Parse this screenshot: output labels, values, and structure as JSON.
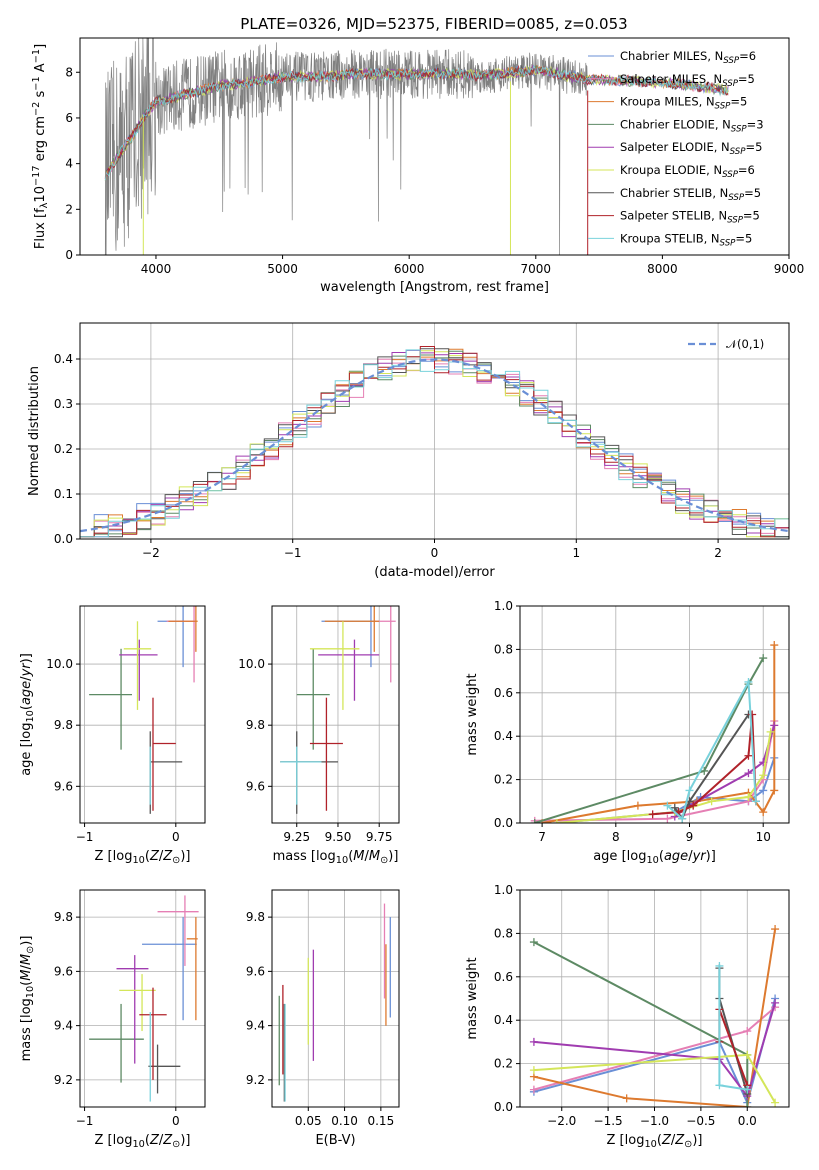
{
  "title": "PLATE=0326, MJD=52375, FIBERID=0085, z=0.053",
  "models": [
    {
      "name": "Chabrier MILES",
      "nssp": "6",
      "color": "#6a8fd6"
    },
    {
      "name": "Salpeter MILES",
      "nssp": "5",
      "color": "#e57fb4"
    },
    {
      "name": "Kroupa MILES",
      "nssp": "5",
      "color": "#dd7a2f"
    },
    {
      "name": "Chabrier ELODIE",
      "nssp": "3",
      "color": "#5d8a64"
    },
    {
      "name": "Salpeter ELODIE",
      "nssp": "5",
      "color": "#a03cb0"
    },
    {
      "name": "Kroupa ELODIE",
      "nssp": "6",
      "color": "#d4e65a"
    },
    {
      "name": "Chabrier STELIB",
      "nssp": "5",
      "color": "#555555"
    },
    {
      "name": "Salpeter STELIB",
      "nssp": "5",
      "color": "#b0222a"
    },
    {
      "name": "Kroupa STELIB",
      "nssp": "5",
      "color": "#79d2dc"
    }
  ],
  "chart_data": [
    {
      "id": "spectrum",
      "type": "line",
      "xlabel": "wavelength [Angstrom, rest frame]",
      "ylabel": "Flux [f_λ10^-17 erg cm^-2 s^-1 A^-1]",
      "xlim": [
        3400,
        9000
      ],
      "ylim": [
        0,
        9.5
      ],
      "xticks": [
        4000,
        5000,
        6000,
        7000,
        8000,
        9000
      ],
      "yticks": [
        0,
        2,
        4,
        6,
        8
      ],
      "data_color": "#808080",
      "continuum": {
        "x": [
          3600,
          3700,
          3800,
          3900,
          4000,
          4200,
          4500,
          4800,
          5000,
          5300,
          5600,
          6000,
          6300,
          6600,
          7000,
          7400,
          7800,
          8100,
          8400,
          8500
        ],
        "y": [
          3.5,
          4.3,
          5.1,
          6.0,
          6.7,
          7.0,
          7.4,
          7.6,
          7.8,
          7.8,
          7.95,
          7.9,
          7.95,
          7.85,
          8.1,
          7.7,
          7.6,
          7.5,
          7.3,
          7.2
        ]
      },
      "data_x_range": [
        3600,
        7410
      ],
      "model_x_range": [
        3600,
        8520
      ],
      "legend_position": "upper right",
      "grid": false
    },
    {
      "id": "residuals",
      "type": "step",
      "xlabel": "(data-model)/error",
      "ylabel": "Normed distribution",
      "xlim": [
        -2.5,
        2.5
      ],
      "ylim": [
        0,
        0.48
      ],
      "xticks": [
        -2,
        -1,
        0,
        1,
        2
      ],
      "yticks": [
        0.0,
        0.1,
        0.2,
        0.3,
        0.4
      ],
      "gaussian_label": "𝒩(0,1)",
      "gaussian_color": "#6a8fd6",
      "legend_position": "upper right",
      "grid": true
    },
    {
      "id": "age-vs-Z",
      "type": "errorbar",
      "xlabel": "Z [log10(Z/Z⊙)]",
      "ylabel": "age  [log10(age/yr)]",
      "xlim": [
        -1.05,
        0.32
      ],
      "ylim": [
        9.48,
        10.19
      ],
      "xticks": [
        -1,
        0
      ],
      "yticks": [
        9.6,
        9.8,
        10.0
      ],
      "points": [
        {
          "x": 0.08,
          "y": 10.14,
          "xerr": [
            0.28,
            0.0
          ],
          "yerr": [
            0.15,
            0.05
          ],
          "m": 0
        },
        {
          "x": 0.2,
          "y": 10.14,
          "xerr": [
            0.3,
            0.0
          ],
          "yerr": [
            0.2,
            0.05
          ],
          "m": 1
        },
        {
          "x": 0.22,
          "y": 10.14,
          "xerr": [
            0.3,
            0.02
          ],
          "yerr": [
            0.1,
            0.05
          ],
          "m": 2
        },
        {
          "x": -0.6,
          "y": 9.9,
          "xerr": [
            0.35,
            0.12
          ],
          "yerr": [
            0.18,
            0.15
          ],
          "m": 3
        },
        {
          "x": -0.4,
          "y": 10.03,
          "xerr": [
            0.22,
            0.2
          ],
          "yerr": [
            0.15,
            0.05
          ],
          "m": 4
        },
        {
          "x": -0.42,
          "y": 10.05,
          "xerr": [
            0.15,
            0.15
          ],
          "yerr": [
            0.2,
            0.09
          ],
          "m": 5
        },
        {
          "x": -0.28,
          "y": 9.68,
          "xerr": [
            0.0,
            0.35
          ],
          "yerr": [
            0.17,
            0.1
          ],
          "m": 6
        },
        {
          "x": -0.25,
          "y": 9.74,
          "xerr": [
            0.0,
            0.25
          ],
          "yerr": [
            0.22,
            0.15
          ],
          "m": 7
        },
        {
          "x": -0.28,
          "y": 9.68,
          "xerr": [
            0.0,
            0.0
          ],
          "yerr": [
            0.14,
            0.05
          ],
          "m": 8
        }
      ],
      "grid": true
    },
    {
      "id": "age-vs-mass",
      "type": "errorbar",
      "xlabel": "mass [log10(M/M⊙)]",
      "ylabel": "",
      "xlim": [
        9.1,
        9.87
      ],
      "ylim": [
        9.48,
        10.19
      ],
      "xticks": [
        9.25,
        9.5,
        9.75
      ],
      "yticks": [
        9.6,
        9.8,
        10.0
      ],
      "points": [
        {
          "x": 9.7,
          "y": 10.14,
          "xerr": [
            0.3,
            0.03
          ],
          "yerr": [
            0.15,
            0.05
          ],
          "m": 0
        },
        {
          "x": 9.82,
          "y": 10.14,
          "xerr": [
            0.1,
            0.03
          ],
          "yerr": [
            0.2,
            0.05
          ],
          "m": 1
        },
        {
          "x": 9.72,
          "y": 10.14,
          "xerr": [
            0.3,
            0.03
          ],
          "yerr": [
            0.1,
            0.05
          ],
          "m": 2
        },
        {
          "x": 9.35,
          "y": 9.9,
          "xerr": [
            0.1,
            0.1
          ],
          "yerr": [
            0.18,
            0.15
          ],
          "m": 3
        },
        {
          "x": 9.6,
          "y": 10.03,
          "xerr": [
            0.22,
            0.15
          ],
          "yerr": [
            0.15,
            0.05
          ],
          "m": 4
        },
        {
          "x": 9.53,
          "y": 10.05,
          "xerr": [
            0.2,
            0.1
          ],
          "yerr": [
            0.2,
            0.09
          ],
          "m": 5
        },
        {
          "x": 9.25,
          "y": 9.68,
          "xerr": [
            0.1,
            0.25
          ],
          "yerr": [
            0.17,
            0.1
          ],
          "m": 6
        },
        {
          "x": 9.43,
          "y": 9.74,
          "xerr": [
            0.1,
            0.1
          ],
          "yerr": [
            0.22,
            0.15
          ],
          "m": 7
        },
        {
          "x": 9.25,
          "y": 9.68,
          "xerr": [
            0.1,
            0.15
          ],
          "yerr": [
            0.14,
            0.05
          ],
          "m": 8
        }
      ],
      "grid": true
    },
    {
      "id": "weight-vs-age",
      "type": "line",
      "xlabel": "age  [log10(age/yr)]",
      "ylabel": "mass weight",
      "xlim": [
        6.7,
        10.35
      ],
      "ylim": [
        0,
        1.0
      ],
      "xticks": [
        7,
        8,
        9,
        10
      ],
      "yticks": [
        0.0,
        0.2,
        0.4,
        0.6,
        0.8,
        1.0
      ],
      "series": [
        {
          "m": 0,
          "x": [
            7.2,
            8.8,
            9.15,
            9.8,
            10.0,
            10.15
          ],
          "y": [
            0.0,
            0.05,
            0.12,
            0.1,
            0.15,
            0.3
          ]
        },
        {
          "m": 1,
          "x": [
            6.9,
            8.7,
            9.8,
            10.0,
            10.15
          ],
          "y": [
            0.01,
            0.02,
            0.1,
            0.2,
            0.47
          ]
        },
        {
          "m": 2,
          "x": [
            7.0,
            8.3,
            9.1,
            9.8,
            10.0,
            10.15,
            10.15
          ],
          "y": [
            0.0,
            0.08,
            0.1,
            0.14,
            0.05,
            0.15,
            0.82
          ]
        },
        {
          "m": 3,
          "x": [
            6.9,
            9.2,
            9.8,
            10.0
          ],
          "y": [
            0.0,
            0.24,
            0.64,
            0.76
          ]
        },
        {
          "m": 4,
          "x": [
            8.8,
            9.0,
            9.8,
            10.0,
            10.15
          ],
          "y": [
            0.03,
            0.08,
            0.23,
            0.28,
            0.45
          ]
        },
        {
          "m": 5,
          "x": [
            7.2,
            8.8,
            9.3,
            9.8,
            10.0,
            10.1
          ],
          "y": [
            0.0,
            0.05,
            0.1,
            0.12,
            0.22,
            0.42
          ]
        },
        {
          "m": 6,
          "x": [
            8.8,
            8.9,
            9.0,
            9.8
          ],
          "y": [
            0.07,
            0.02,
            0.1,
            0.5
          ]
        },
        {
          "m": 7,
          "x": [
            8.5,
            8.85,
            9.05,
            9.8,
            9.85,
            9.9
          ],
          "y": [
            0.04,
            0.05,
            0.08,
            0.31,
            0.5,
            0.1
          ]
        },
        {
          "m": 8,
          "x": [
            8.7,
            8.9,
            9.0,
            9.8,
            9.9
          ],
          "y": [
            0.08,
            0.02,
            0.15,
            0.65,
            0.1
          ]
        }
      ],
      "grid": true
    },
    {
      "id": "mass-vs-Z",
      "type": "errorbar",
      "xlabel": "Z [log10(Z/Z⊙)]",
      "ylabel": "mass [log10(M/M⊙)]",
      "xlim": [
        -1.05,
        0.32
      ],
      "ylim": [
        9.1,
        9.9
      ],
      "xticks": [
        -1,
        0
      ],
      "yticks": [
        9.2,
        9.4,
        9.6,
        9.8
      ],
      "points": [
        {
          "x": 0.08,
          "y": 9.7,
          "xerr": [
            0.45,
            0.15
          ],
          "yerr": [
            0.28,
            0.1
          ],
          "m": 0
        },
        {
          "x": 0.1,
          "y": 9.82,
          "xerr": [
            0.3,
            0.15
          ],
          "yerr": [
            0.2,
            0.06
          ],
          "m": 1
        },
        {
          "x": 0.22,
          "y": 9.72,
          "xerr": [
            0.1,
            0.02
          ],
          "yerr": [
            0.3,
            0.08
          ],
          "m": 2
        },
        {
          "x": -0.6,
          "y": 9.35,
          "xerr": [
            0.35,
            0.25
          ],
          "yerr": [
            0.16,
            0.13
          ],
          "m": 3
        },
        {
          "x": -0.45,
          "y": 9.61,
          "xerr": [
            0.2,
            0.15
          ],
          "yerr": [
            0.35,
            0.05
          ],
          "m": 4
        },
        {
          "x": -0.37,
          "y": 9.53,
          "xerr": [
            0.25,
            0.15
          ],
          "yerr": [
            0.15,
            0.06
          ],
          "m": 5
        },
        {
          "x": -0.2,
          "y": 9.25,
          "xerr": [
            0.1,
            0.25
          ],
          "yerr": [
            0.1,
            0.08
          ],
          "m": 6
        },
        {
          "x": -0.25,
          "y": 9.44,
          "xerr": [
            0.15,
            0.15
          ],
          "yerr": [
            0.24,
            0.1
          ],
          "m": 7
        },
        {
          "x": -0.28,
          "y": 9.25,
          "xerr": [
            0.0,
            0.0
          ],
          "yerr": [
            0.13,
            0.2
          ],
          "m": 8
        }
      ],
      "grid": true
    },
    {
      "id": "mass-vs-EBV",
      "type": "errorbar",
      "xlabel": "E(B-V)",
      "ylabel": "",
      "xlim": [
        0.0,
        0.175
      ],
      "ylim": [
        9.1,
        9.9
      ],
      "xticks": [
        0.05,
        0.1,
        0.15
      ],
      "yticks": [
        9.2,
        9.4,
        9.6,
        9.8
      ],
      "points": [
        {
          "x": 0.163,
          "y": 9.62,
          "xerr": [
            0,
            0
          ],
          "yerr": [
            0.19,
            0.18
          ],
          "m": 0
        },
        {
          "x": 0.155,
          "y": 9.72,
          "xerr": [
            0,
            0
          ],
          "yerr": [
            0.22,
            0.13
          ],
          "m": 1
        },
        {
          "x": 0.157,
          "y": 9.6,
          "xerr": [
            0,
            0
          ],
          "yerr": [
            0.2,
            0.1
          ],
          "m": 2
        },
        {
          "x": 0.01,
          "y": 9.35,
          "xerr": [
            0,
            0
          ],
          "yerr": [
            0.17,
            0.16
          ],
          "m": 3
        },
        {
          "x": 0.057,
          "y": 9.47,
          "xerr": [
            0,
            0
          ],
          "yerr": [
            0.2,
            0.21
          ],
          "m": 4
        },
        {
          "x": 0.05,
          "y": 9.47,
          "xerr": [
            0,
            0
          ],
          "yerr": [
            0.14,
            0.18
          ],
          "m": 5
        },
        {
          "x": 0.017,
          "y": 9.32,
          "xerr": [
            0,
            0
          ],
          "yerr": [
            0.2,
            0.16
          ],
          "m": 6
        },
        {
          "x": 0.015,
          "y": 9.37,
          "xerr": [
            0,
            0
          ],
          "yerr": [
            0.15,
            0.18
          ],
          "m": 7
        },
        {
          "x": 0.018,
          "y": 9.3,
          "xerr": [
            0,
            0
          ],
          "yerr": [
            0.18,
            0.18
          ],
          "m": 8
        }
      ],
      "grid": true
    },
    {
      "id": "weight-vs-Z",
      "type": "line",
      "xlabel": "Z [log10(Z/Z⊙)]",
      "ylabel": "mass weight",
      "xlim": [
        -2.45,
        0.45
      ],
      "ylim": [
        0,
        1.0
      ],
      "xticks": [
        -2.0,
        -1.5,
        -1.0,
        -0.5,
        0.0
      ],
      "yticks": [
        0.0,
        0.2,
        0.4,
        0.6,
        0.8,
        1.0
      ],
      "series": [
        {
          "m": 0,
          "x": [
            -2.3,
            -0.3,
            0.0,
            0.3
          ],
          "y": [
            0.07,
            0.3,
            0.02,
            0.5
          ]
        },
        {
          "m": 1,
          "x": [
            -2.3,
            0.0,
            0.3
          ],
          "y": [
            0.08,
            0.35,
            0.46
          ]
        },
        {
          "m": 2,
          "x": [
            -2.3,
            -1.3,
            0.0,
            0.3
          ],
          "y": [
            0.14,
            0.04,
            0.0,
            0.82
          ]
        },
        {
          "m": 3,
          "x": [
            -2.3,
            0.0,
            0.0
          ],
          "y": [
            0.76,
            0.24,
            0.0
          ]
        },
        {
          "m": 4,
          "x": [
            -2.3,
            -0.3,
            0.0,
            0.3
          ],
          "y": [
            0.3,
            0.22,
            0.05,
            0.48
          ]
        },
        {
          "m": 5,
          "x": [
            -2.3,
            0.0,
            0.3
          ],
          "y": [
            0.17,
            0.24,
            0.02
          ]
        },
        {
          "m": 6,
          "x": [
            -0.3,
            -0.3,
            0.0
          ],
          "y": [
            0.64,
            0.5,
            0.06
          ]
        },
        {
          "m": 7,
          "x": [
            -0.3,
            -0.3,
            0.0
          ],
          "y": [
            0.3,
            0.45,
            0.1
          ]
        },
        {
          "m": 8,
          "x": [
            -0.3,
            -0.3,
            0.0
          ],
          "y": [
            0.65,
            0.1,
            0.08
          ]
        }
      ],
      "grid": true
    }
  ]
}
